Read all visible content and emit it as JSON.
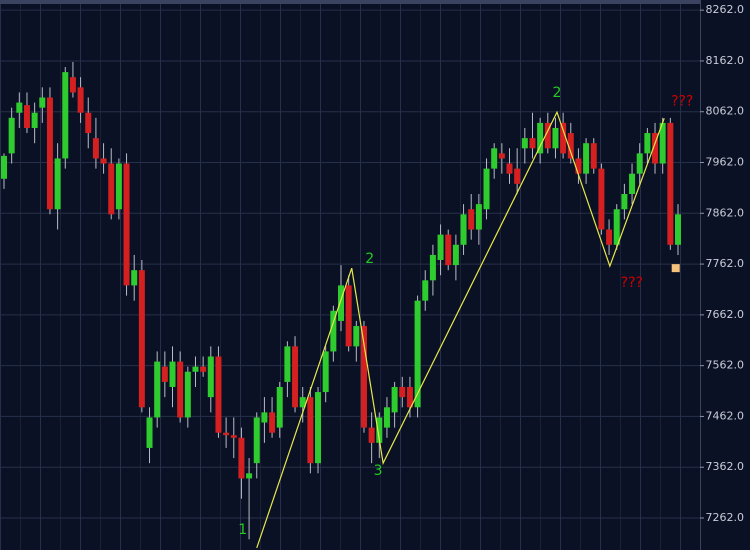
{
  "chart_data": {
    "type": "candlestick",
    "ylim": [
      7199,
      8282
    ],
    "yticks": [
      {
        "value": 7262,
        "label": "7262.0"
      },
      {
        "value": 7362,
        "label": "7362.0"
      },
      {
        "value": 7462,
        "label": "7462.0"
      },
      {
        "value": 7562,
        "label": "7562.0"
      },
      {
        "value": 7662,
        "label": "7662.0"
      },
      {
        "value": 7762,
        "label": "7762.0"
      },
      {
        "value": 7862,
        "label": "7862.0"
      },
      {
        "value": 7962,
        "label": "7962.0"
      },
      {
        "value": 8062,
        "label": "8062.0"
      },
      {
        "value": 8162,
        "label": "8162.0"
      },
      {
        "value": 8262,
        "label": "8262.0"
      }
    ],
    "grid": true,
    "up_color": "#2ecc2e",
    "down_color": "#d42020",
    "series": [
      {
        "open": [
          7930,
          7980,
          8060,
          8075,
          8030,
          8070,
          8090,
          7870,
          7970,
          8130,
          8110,
          8060,
          8010,
          7970,
          7960,
          7870,
          7960,
          7720,
          7750,
          7400,
          7460,
          7560,
          7520,
          7570,
          7460,
          7550,
          7560,
          7500,
          7580,
          7430,
          7425,
          7420,
          7340,
          7370,
          7450,
          7470,
          7440,
          7530,
          7600,
          7480,
          7500,
          7370,
          7510,
          7590,
          7650,
          7720,
          7600,
          7640,
          7440,
          7410,
          7440,
          7470,
          7520,
          7520,
          7480,
          7690,
          7730,
          7770,
          7820,
          7760,
          7800,
          7870,
          7830,
          7870,
          7950,
          7980,
          7960,
          7950,
          7990,
          8010,
          7980,
          8040,
          7990,
          8040,
          8020,
          7970,
          7940,
          8000,
          7950,
          7830,
          7800,
          7870,
          7900,
          7940,
          7980,
          8020,
          7960,
          8040,
          7800
        ],
        "high": [
          7980,
          8070,
          8100,
          8100,
          8080,
          8110,
          8110,
          8000,
          8150,
          8160,
          8130,
          8090,
          8050,
          8000,
          7990,
          7970,
          7980,
          7780,
          7770,
          7480,
          7590,
          7590,
          7600,
          7590,
          7560,
          7580,
          7580,
          7600,
          7600,
          7460,
          7460,
          7440,
          7380,
          7470,
          7500,
          7500,
          7530,
          7610,
          7620,
          7520,
          7520,
          7520,
          7600,
          7680,
          7760,
          7740,
          7650,
          7650,
          7470,
          7470,
          7500,
          7530,
          7540,
          7540,
          7700,
          7750,
          7800,
          7840,
          7830,
          7820,
          7880,
          7900,
          7900,
          7970,
          8000,
          8000,
          7990,
          7990,
          8030,
          8060,
          8050,
          8060,
          8050,
          8060,
          8040,
          7990,
          8010,
          8010,
          7960,
          7850,
          7880,
          7920,
          7960,
          8000,
          8030,
          8040,
          8050,
          8050,
          7880
        ],
        "low": [
          7910,
          7960,
          8030,
          8020,
          8000,
          8040,
          7860,
          7830,
          7950,
          8090,
          8040,
          7990,
          7950,
          7940,
          7850,
          7850,
          7700,
          7690,
          7470,
          7370,
          7440,
          7500,
          7480,
          7450,
          7440,
          7520,
          7540,
          7470,
          7420,
          7400,
          7380,
          7300,
          7220,
          7340,
          7410,
          7420,
          7420,
          7500,
          7470,
          7450,
          7350,
          7350,
          7490,
          7570,
          7630,
          7590,
          7570,
          7430,
          7370,
          7380,
          7420,
          7440,
          7480,
          7460,
          7460,
          7670,
          7700,
          7740,
          7750,
          7730,
          7780,
          7810,
          7800,
          7850,
          7930,
          7940,
          7920,
          7900,
          7960,
          7970,
          7960,
          7980,
          7970,
          7970,
          7960,
          7920,
          7920,
          7940,
          7820,
          7780,
          7790,
          7850,
          7880,
          7920,
          7960,
          7940,
          7940,
          7790,
          7780
        ],
        "close": [
          7975,
          8050,
          8080,
          8030,
          8060,
          8090,
          7870,
          7970,
          8140,
          8100,
          8060,
          8020,
          7970,
          7960,
          7860,
          7960,
          7720,
          7750,
          7480,
          7460,
          7570,
          7530,
          7570,
          7460,
          7550,
          7560,
          7550,
          7580,
          7430,
          7425,
          7420,
          7340,
          7350,
          7460,
          7470,
          7430,
          7520,
          7600,
          7480,
          7500,
          7370,
          7510,
          7590,
          7670,
          7720,
          7600,
          7640,
          7440,
          7410,
          7460,
          7480,
          7520,
          7500,
          7480,
          7690,
          7730,
          7780,
          7820,
          7760,
          7800,
          7860,
          7830,
          7880,
          7950,
          7990,
          7970,
          7940,
          7920,
          8010,
          7990,
          8040,
          7990,
          8030,
          7980,
          7970,
          7940,
          8000,
          7950,
          7830,
          7800,
          7870,
          7900,
          7940,
          7980,
          8020,
          7960,
          8040,
          7800,
          7860
        ]
      }
    ],
    "zigzag": {
      "color": "#e8e84a",
      "points": [
        {
          "x": 33,
          "value": 7203,
          "label": "1",
          "color": "#22cc22"
        },
        {
          "x": 45.4,
          "value": 7754,
          "label": "2",
          "color": "#22cc22"
        },
        {
          "x": 49.5,
          "value": 7370,
          "label": "3",
          "color": "#22cc22"
        },
        {
          "x": 72.2,
          "value": 8061,
          "label": "2",
          "color": "#22cc22"
        },
        {
          "x": 79.1,
          "value": 7758,
          "label": "???",
          "color": "#cc0000"
        },
        {
          "x": 86.2,
          "value": 8049,
          "label": "???",
          "color": "#cc0000"
        }
      ]
    },
    "marker": {
      "x": 87.7,
      "value": 7754,
      "color": "#f4c27a"
    }
  }
}
